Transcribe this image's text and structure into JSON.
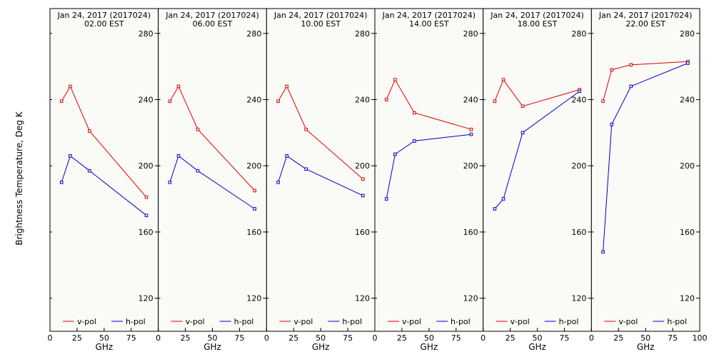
{
  "ylabel": "Brightness Temperature, Deg K",
  "xlabel": "GHz",
  "colors": {
    "v_pol": "#dd0000",
    "h_pol": "#0000cc"
  },
  "chart_data": [
    {
      "type": "line",
      "title": "Jan 24, 2017 (2017024)",
      "subtitle": "02.00 EST",
      "x": [
        10.7,
        18.7,
        36.5,
        89.0
      ],
      "series": [
        {
          "name": "v-pol",
          "values": [
            239,
            248,
            221,
            181
          ]
        },
        {
          "name": "h-pol",
          "values": [
            190,
            206,
            197,
            170
          ]
        }
      ],
      "xlim": [
        0,
        100
      ],
      "ylim": [
        100,
        295
      ],
      "xticks": [
        0,
        25,
        50,
        75
      ],
      "yticks": [
        120,
        160,
        200,
        240,
        280
      ]
    },
    {
      "type": "line",
      "title": "Jan 24, 2017 (2017024)",
      "subtitle": "06.00 EST",
      "x": [
        10.7,
        18.7,
        36.5,
        89.0
      ],
      "series": [
        {
          "name": "v-pol",
          "values": [
            239,
            248,
            222,
            185
          ]
        },
        {
          "name": "h-pol",
          "values": [
            190,
            206,
            197,
            174
          ]
        }
      ],
      "xlim": [
        0,
        100
      ],
      "ylim": [
        100,
        295
      ],
      "xticks": [
        0,
        25,
        50,
        75
      ],
      "yticks": [
        120,
        160,
        200,
        240,
        280
      ]
    },
    {
      "type": "line",
      "title": "Jan 24, 2017 (2017024)",
      "subtitle": "10.00 EST",
      "x": [
        10.7,
        18.7,
        36.5,
        89.0
      ],
      "series": [
        {
          "name": "v-pol",
          "values": [
            239,
            248,
            222,
            192
          ]
        },
        {
          "name": "h-pol",
          "values": [
            190,
            206,
            198,
            182
          ]
        }
      ],
      "xlim": [
        0,
        100
      ],
      "ylim": [
        100,
        295
      ],
      "xticks": [
        0,
        25,
        50,
        75
      ],
      "yticks": [
        120,
        160,
        200,
        240,
        280
      ]
    },
    {
      "type": "line",
      "title": "Jan 24, 2017 (2017024)",
      "subtitle": "14.00 EST",
      "x": [
        10.7,
        18.7,
        36.5,
        89.0
      ],
      "series": [
        {
          "name": "v-pol",
          "values": [
            240,
            252,
            232,
            222
          ]
        },
        {
          "name": "h-pol",
          "values": [
            180,
            207,
            215,
            219
          ]
        }
      ],
      "xlim": [
        0,
        100
      ],
      "ylim": [
        100,
        295
      ],
      "xticks": [
        0,
        25,
        50,
        75
      ],
      "yticks": [
        120,
        160,
        200,
        240,
        280
      ]
    },
    {
      "type": "line",
      "title": "Jan 24, 2017 (2017024)",
      "subtitle": "18.00 EST",
      "x": [
        10.7,
        18.7,
        36.5,
        89.0
      ],
      "series": [
        {
          "name": "v-pol",
          "values": [
            239,
            252,
            236,
            246
          ]
        },
        {
          "name": "h-pol",
          "values": [
            174,
            180,
            220,
            245
          ]
        }
      ],
      "xlim": [
        0,
        100
      ],
      "ylim": [
        100,
        295
      ],
      "xticks": [
        0,
        25,
        50,
        75
      ],
      "yticks": [
        120,
        160,
        200,
        240,
        280
      ]
    },
    {
      "type": "line",
      "title": "Jan 24, 2017 (2017024)",
      "subtitle": "22.00 EST",
      "x": [
        10.7,
        18.7,
        36.5,
        89.0
      ],
      "series": [
        {
          "name": "v-pol",
          "values": [
            239,
            258,
            261,
            263
          ]
        },
        {
          "name": "h-pol",
          "values": [
            148,
            225,
            248,
            262
          ]
        }
      ],
      "xlim": [
        0,
        100
      ],
      "ylim": [
        100,
        295
      ],
      "xticks": [
        0,
        25,
        50,
        75,
        100
      ],
      "yticks": [
        120,
        160,
        200,
        240,
        280
      ]
    }
  ]
}
